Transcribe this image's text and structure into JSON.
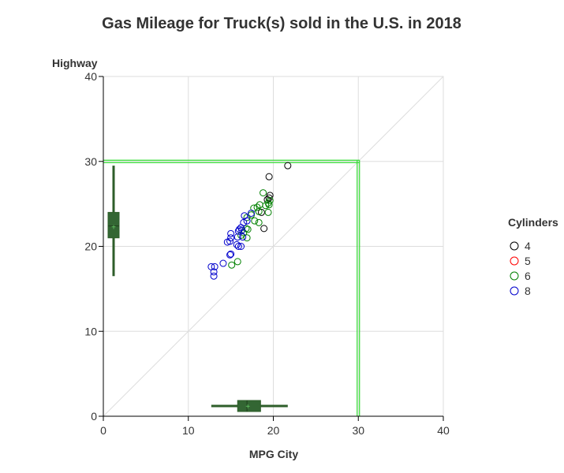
{
  "chart_data": {
    "type": "scatter",
    "title": "Gas Mileage for Truck(s) sold in the U.S. in 2018",
    "xlabel": "MPG City",
    "ylabel": "Highway",
    "xlim": [
      0,
      40
    ],
    "ylim": [
      0,
      40
    ],
    "xticks": [
      0,
      10,
      20,
      30,
      40
    ],
    "yticks": [
      0,
      10,
      20,
      30,
      40
    ],
    "grid": true,
    "reference_line": {
      "type": "diagonal",
      "from": [
        0,
        0
      ],
      "to": [
        40,
        40
      ],
      "color": "#dddddd"
    },
    "threshold_lines": {
      "x": 30,
      "y": 30,
      "color": "#33dd33"
    },
    "legend": {
      "title": "Cylinders",
      "placement": "right",
      "entries": [
        {
          "label": "4",
          "color": "#000000"
        },
        {
          "label": "5",
          "color": "#ff0000"
        },
        {
          "label": "6",
          "color": "#008000"
        },
        {
          "label": "8",
          "color": "#0000cc"
        }
      ]
    },
    "series": [
      {
        "name": "4",
        "color": "#000000",
        "points": [
          [
            21.7,
            29.5
          ],
          [
            19.5,
            28.2
          ],
          [
            19.6,
            26.0
          ],
          [
            19.5,
            25.7
          ],
          [
            19.3,
            25.5
          ],
          [
            18.9,
            22.1
          ],
          [
            18.6,
            24.0
          ]
        ]
      },
      {
        "name": "5",
        "color": "#ff0000",
        "points": []
      },
      {
        "name": "6",
        "color": "#008000",
        "points": [
          [
            18.8,
            26.3
          ],
          [
            18.4,
            24.9
          ],
          [
            19.6,
            25.4
          ],
          [
            19.4,
            25.1
          ],
          [
            18.1,
            24.6
          ],
          [
            17.7,
            24.5
          ],
          [
            19.1,
            24.8
          ],
          [
            19.5,
            24.9
          ],
          [
            18.3,
            24.1
          ],
          [
            19.4,
            24.0
          ],
          [
            17.8,
            23.0
          ],
          [
            18.3,
            22.8
          ],
          [
            16.9,
            23.4
          ],
          [
            16.8,
            22.1
          ],
          [
            17.0,
            22.0
          ],
          [
            16.5,
            21.6
          ],
          [
            16.9,
            21.0
          ],
          [
            15.8,
            18.2
          ],
          [
            15.1,
            17.8
          ],
          [
            16.2,
            21.3
          ],
          [
            17.4,
            23.7
          ]
        ]
      },
      {
        "name": "8",
        "color": "#0000cc",
        "points": [
          [
            16.5,
            22.8
          ],
          [
            16.9,
            23.0
          ],
          [
            16.2,
            22.2
          ],
          [
            16.0,
            22.0
          ],
          [
            15.9,
            21.8
          ],
          [
            16.3,
            21.9
          ],
          [
            15.8,
            21.1
          ],
          [
            15.0,
            21.5
          ],
          [
            15.0,
            21.0
          ],
          [
            14.9,
            20.6
          ],
          [
            14.6,
            20.5
          ],
          [
            15.7,
            20.2
          ],
          [
            16.2,
            20.0
          ],
          [
            15.9,
            20.0
          ],
          [
            16.4,
            21.1
          ],
          [
            15.0,
            19.1
          ],
          [
            14.9,
            19.0
          ],
          [
            14.1,
            18.0
          ],
          [
            13.1,
            17.6
          ],
          [
            12.7,
            17.6
          ],
          [
            13.0,
            17.0
          ],
          [
            13.0,
            16.5
          ],
          [
            16.6,
            23.6
          ],
          [
            17.4,
            23.9
          ]
        ]
      }
    ],
    "x_distribution": {
      "min": 12.7,
      "q1": 15.8,
      "median": 16.9,
      "q3": 18.5,
      "max": 21.7,
      "mean": 17.0
    },
    "y_distribution": {
      "min": 16.5,
      "q1": 21.0,
      "median": 22.4,
      "q3": 24.0,
      "max": 29.5,
      "mean": 22.3
    }
  }
}
